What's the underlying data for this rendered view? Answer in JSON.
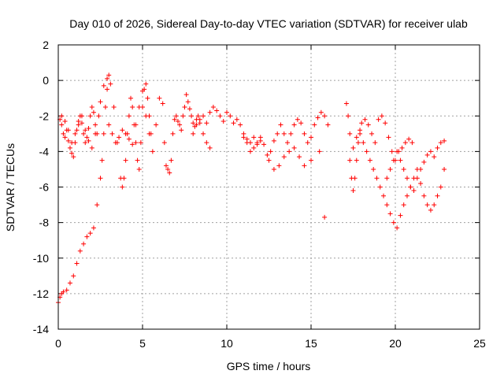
{
  "chart_data": {
    "type": "scatter",
    "title": "Day 010 of 2026, Sidereal Day-to-day VTEC variation (SDTVAR) for receiver ulab",
    "xlabel": "GPS time / hours",
    "ylabel": "SDTVAR / TECUs",
    "xlim": [
      0,
      25
    ],
    "ylim": [
      -14,
      2
    ],
    "xticks": [
      0,
      5,
      10,
      15,
      20,
      25
    ],
    "yticks": [
      -14,
      -12,
      -10,
      -8,
      -6,
      -4,
      -2,
      0,
      2
    ],
    "grid": true,
    "marker": "+",
    "color": "#ff0000",
    "series": [
      {
        "name": "ulab",
        "x": [
          0.0,
          0.1,
          0.2,
          0.3,
          0.5,
          0.7,
          0.9,
          1.1,
          1.3,
          1.5,
          1.7,
          1.9,
          2.1,
          2.3,
          2.5,
          2.6,
          2.7,
          2.8,
          2.9,
          3.0,
          0.1,
          0.2,
          0.3,
          0.4,
          0.5,
          0.6,
          0.7,
          0.8,
          0.9,
          1.0,
          1.1,
          1.2,
          1.3,
          1.4,
          1.5,
          1.6,
          1.7,
          1.8,
          1.9,
          2.0,
          2.1,
          2.2,
          2.3,
          2.4,
          0.2,
          0.4,
          0.6,
          0.8,
          1.0,
          1.2,
          1.4,
          1.6,
          1.8,
          2.0,
          2.2,
          2.5,
          2.7,
          2.9,
          3.1,
          3.3,
          3.5,
          3.7,
          3.8,
          3.9,
          4.0,
          4.1,
          4.2,
          4.3,
          4.4,
          4.5,
          4.6,
          4.7,
          4.8,
          4.9,
          5.0,
          5.1,
          5.2,
          5.3,
          5.4,
          5.5,
          3.0,
          3.2,
          3.4,
          3.6,
          3.8,
          4.0,
          4.2,
          4.4,
          4.6,
          4.8,
          5.0,
          5.2,
          5.4,
          5.6,
          5.8,
          6.0,
          6.2,
          6.3,
          6.4,
          6.5,
          6.6,
          6.7,
          6.8,
          6.9,
          7.0,
          7.1,
          7.2,
          7.3,
          7.4,
          7.5,
          7.6,
          7.7,
          7.8,
          7.9,
          8.0,
          8.1,
          8.2,
          8.3,
          8.4,
          8.6,
          8.8,
          9.0,
          8.0,
          8.2,
          8.4,
          8.6,
          8.8,
          9.0,
          9.2,
          9.4,
          9.6,
          9.8,
          10.0,
          10.2,
          10.4,
          10.6,
          10.8,
          11.0,
          11.2,
          11.4,
          11.6,
          11.8,
          12.0,
          11.0,
          11.2,
          11.4,
          11.6,
          11.8,
          12.0,
          12.2,
          12.4,
          12.6,
          12.8,
          13.0,
          13.2,
          13.4,
          13.6,
          13.8,
          14.0,
          14.2,
          14.4,
          14.6,
          14.8,
          15.0,
          15.2,
          15.4,
          15.6,
          15.8,
          16.0,
          12.5,
          12.8,
          13.1,
          13.4,
          13.7,
          14.0,
          14.3,
          14.6,
          15.0,
          15.5,
          15.8,
          17.1,
          17.2,
          17.3,
          17.4,
          17.5,
          17.6,
          17.7,
          17.8,
          17.9,
          18.0,
          18.2,
          18.4,
          18.6,
          18.8,
          19.0,
          19.2,
          19.4,
          19.6,
          19.8,
          20.0,
          20.2,
          20.4,
          20.6,
          20.8,
          21.0,
          17.3,
          17.5,
          17.7,
          17.9,
          18.1,
          18.3,
          18.5,
          18.7,
          18.9,
          19.1,
          19.3,
          19.5,
          19.7,
          19.9,
          20.1,
          20.3,
          20.5,
          20.7,
          20.9,
          21.1,
          21.3,
          21.5,
          21.7,
          21.9,
          22.1,
          22.3,
          22.5,
          22.7,
          22.9,
          19.5,
          19.7,
          19.9,
          20.1,
          20.3,
          20.5,
          20.7,
          20.9,
          21.1,
          21.3,
          21.5,
          21.7,
          21.9,
          22.1,
          22.3,
          22.5,
          22.7,
          22.9
        ],
        "y": [
          -12.5,
          -12.2,
          -12.0,
          -11.9,
          -11.8,
          -11.4,
          -11.0,
          -10.3,
          -9.6,
          -9.2,
          -8.8,
          -8.6,
          -8.3,
          -7.0,
          -5.5,
          -4.5,
          -3.0,
          -1.5,
          -0.5,
          0.3,
          -2.2,
          -2.5,
          -3.0,
          -3.2,
          -2.8,
          -3.4,
          -3.8,
          -4.1,
          -4.3,
          -3.5,
          -2.8,
          -2.3,
          -2.0,
          -2.4,
          -3.0,
          -3.5,
          -3.2,
          -2.7,
          -2.0,
          -1.5,
          -1.8,
          -2.5,
          -3.0,
          -2.0,
          -2.0,
          -2.3,
          -2.8,
          -3.5,
          -3.0,
          -2.5,
          -2.0,
          -2.8,
          -3.4,
          -3.8,
          -3.0,
          -1.2,
          -0.3,
          0.1,
          -0.2,
          -1.5,
          -3.5,
          -5.5,
          -6.0,
          -5.5,
          -4.5,
          -3.0,
          -2.0,
          -1.0,
          -1.5,
          -2.5,
          -3.5,
          -4.5,
          -5.0,
          -3.5,
          -1.5,
          -0.5,
          -0.2,
          -1.0,
          -2.0,
          -3.0,
          -2.5,
          -3.0,
          -3.5,
          -3.2,
          -2.8,
          -3.0,
          -3.3,
          -3.6,
          -2.5,
          -1.5,
          -0.6,
          -2.0,
          -3.0,
          -4.0,
          -2.5,
          -1.0,
          -1.3,
          -3.5,
          -4.8,
          -5.0,
          -5.2,
          -4.5,
          -3.0,
          -2.2,
          -2.0,
          -2.3,
          -2.5,
          -2.8,
          -2.0,
          -1.5,
          -0.8,
          -1.2,
          -1.6,
          -2.0,
          -2.4,
          -2.6,
          -2.2,
          -2.0,
          -2.4,
          -3.0,
          -3.5,
          -3.8,
          -3.0,
          -2.5,
          -2.2,
          -2.0,
          -2.4,
          -1.8,
          -1.5,
          -1.7,
          -2.0,
          -2.3,
          -1.8,
          -2.0,
          -2.4,
          -2.2,
          -2.5,
          -3.0,
          -3.3,
          -3.5,
          -3.2,
          -3.6,
          -3.4,
          -3.2,
          -3.5,
          -4.0,
          -3.8,
          -3.5,
          -3.2,
          -3.6,
          -4.2,
          -4.0,
          -3.4,
          -3.0,
          -2.5,
          -3.0,
          -3.5,
          -3.0,
          -2.5,
          -2.2,
          -2.4,
          -3.0,
          -3.5,
          -3.2,
          -2.5,
          -2.1,
          -1.8,
          -2.0,
          -2.5,
          -4.5,
          -5.0,
          -4.8,
          -4.3,
          -4.0,
          -3.8,
          -4.3,
          -4.8,
          -4.5,
          -4.0,
          -7.7,
          -1.3,
          -2.0,
          -3.0,
          -5.5,
          -6.2,
          -5.5,
          -4.5,
          -3.5,
          -2.8,
          -2.4,
          -2.2,
          -2.5,
          -3.0,
          -3.5,
          -2.2,
          -2.0,
          -2.4,
          -3.2,
          -4.0,
          -4.5,
          -4.0,
          -3.8,
          -3.5,
          -3.3,
          -3.5,
          -4.5,
          -3.8,
          -3.2,
          -3.0,
          -3.5,
          -4.0,
          -4.5,
          -5.0,
          -5.5,
          -6.0,
          -6.5,
          -7.0,
          -7.5,
          -8.0,
          -8.3,
          -7.6,
          -7.0,
          -6.5,
          -6.0,
          -5.5,
          -5.0,
          -5.8,
          -6.5,
          -7.0,
          -7.3,
          -7.0,
          -6.5,
          -6.0,
          -5.0,
          -5.5,
          -5.0,
          -4.5,
          -4.0,
          -4.5,
          -5.0,
          -5.5,
          -6.0,
          -6.2,
          -5.5,
          -5.0,
          -4.6,
          -4.2,
          -4.0,
          -4.3,
          -3.8,
          -3.5,
          -3.4
        ]
      }
    ]
  }
}
